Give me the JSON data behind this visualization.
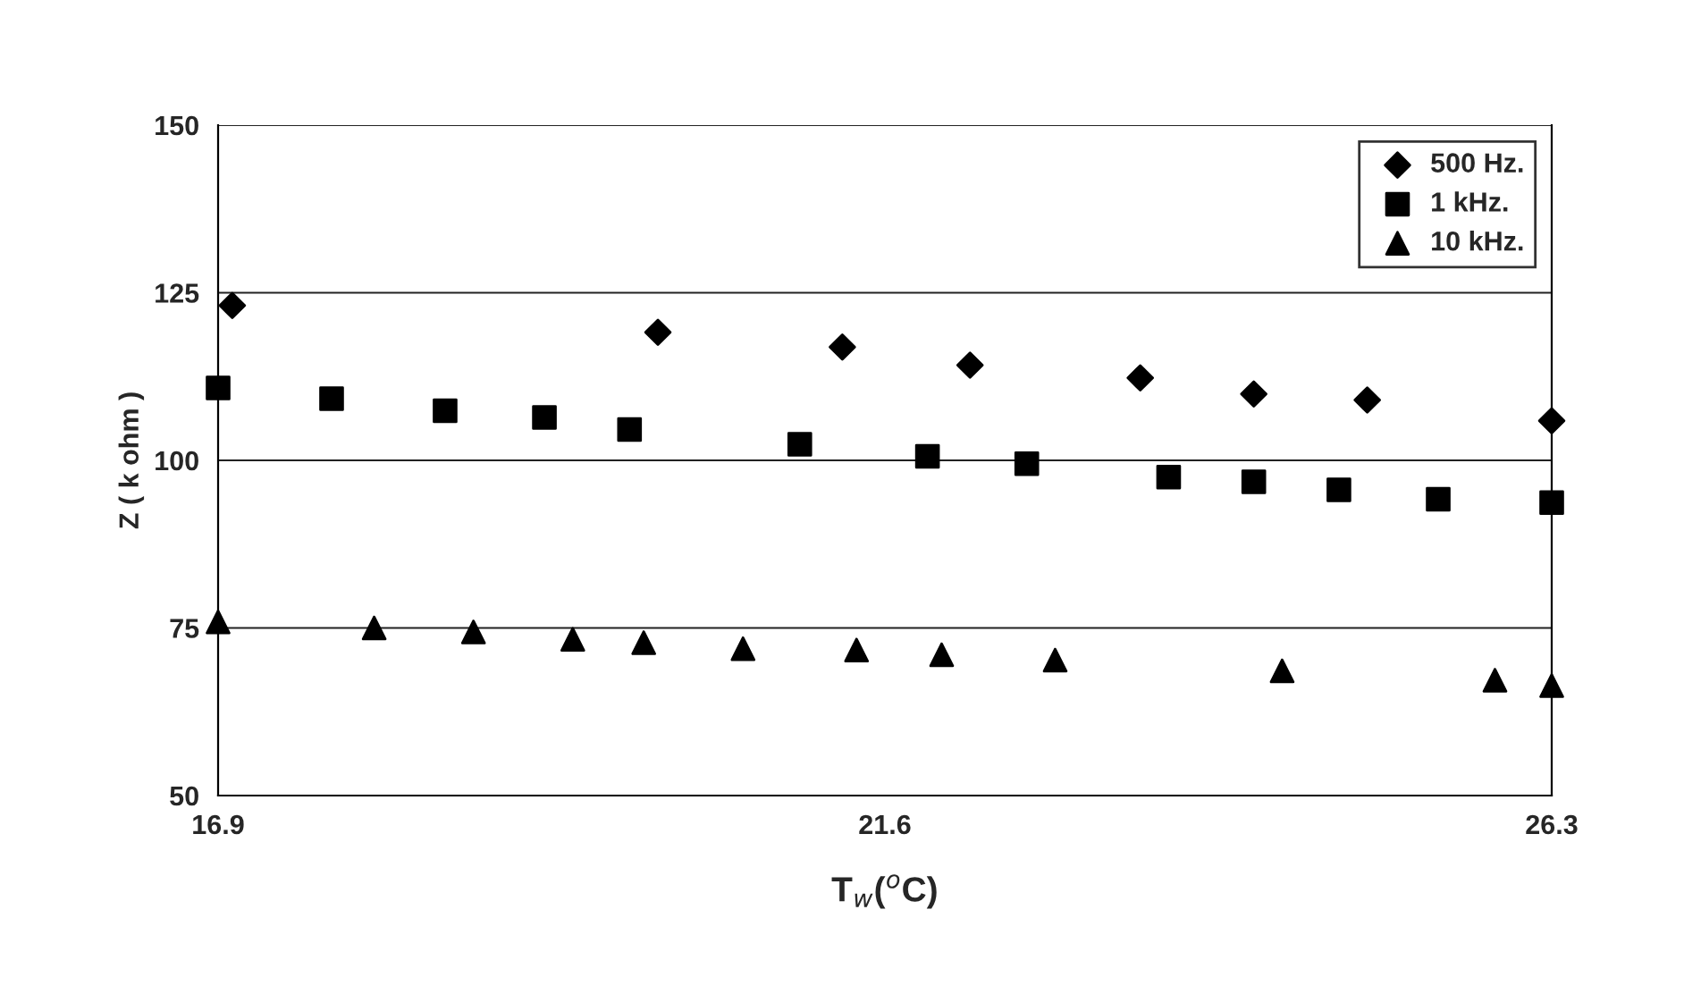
{
  "chart_data": {
    "type": "scatter",
    "xlabel": "T$_{w}$($^{o}$C)",
    "ylabel": "Z ( k ohm )",
    "xlim": [
      16.9,
      26.3
    ],
    "xticks": [
      16.9,
      21.6,
      26.3
    ],
    "ylim": [
      50,
      150
    ],
    "yticks": [
      50,
      75,
      100,
      125,
      150
    ],
    "grid": "y",
    "legend": "top right",
    "series": [
      {
        "name": "500 Hz.",
        "color": "#000000",
        "marker": "diamond",
        "x": [
          17.0,
          20.0,
          21.3,
          22.2,
          23.4,
          24.2,
          25.0,
          26.3
        ],
        "values": [
          123.1,
          119.1,
          116.9,
          114.2,
          112.3,
          109.9,
          109.0,
          105.9
        ]
      },
      {
        "name": "1 kHz.",
        "color": "#000000",
        "marker": "square",
        "x": [
          16.9,
          17.7,
          18.5,
          19.2,
          19.8,
          21.0,
          21.9,
          22.6,
          23.6,
          24.2,
          24.8,
          25.5,
          26.3
        ],
        "values": [
          110.8,
          109.2,
          107.4,
          106.4,
          104.6,
          102.4,
          100.6,
          99.5,
          97.5,
          96.8,
          95.6,
          94.2,
          93.7
        ]
      },
      {
        "name": "10 kHz.",
        "color": "#000000",
        "marker": "triangle",
        "x": [
          16.9,
          18.0,
          18.7,
          19.4,
          19.9,
          20.6,
          21.4,
          22.0,
          22.8,
          24.4,
          25.9,
          26.3
        ],
        "values": [
          75.9,
          75.0,
          74.4,
          73.3,
          72.8,
          71.9,
          71.7,
          71.0,
          70.2,
          68.6,
          67.2,
          66.4
        ]
      }
    ]
  }
}
